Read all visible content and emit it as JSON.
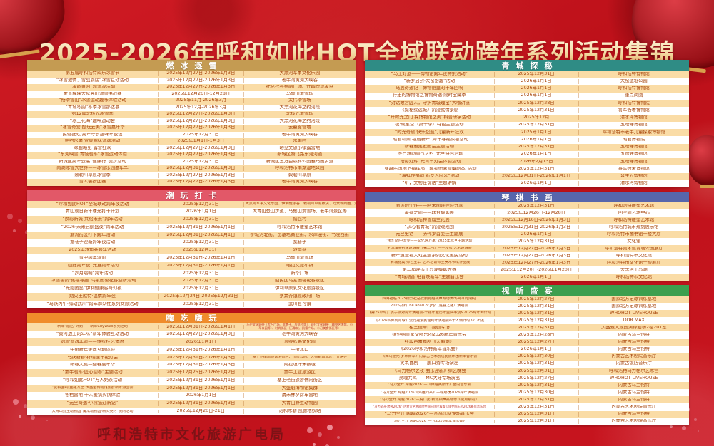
{
  "title": "2025-2026年呼和如此HOT全域联动跨年系列活动集锦",
  "footer": "呼和浩特市文化旅游广电局",
  "accent_colors": {
    "background_red": "#BC1019",
    "row_peach": "#FADCA6",
    "cell_text": "#A54309",
    "title_gold": "#F4DCA6",
    "footer_maroon": "#7D1216"
  },
  "sections": [
    {
      "title": "燃冰逐雪",
      "header_color": "#C49B52",
      "rows": [
        [
          "第五届呼和浩特欢乐冰雪节",
          "2025年12月27日-2026年1月3日",
          "大黑河军事文化乐园"
        ],
        [
          "“冰雪激情、雪战到底”冰雪互动活动",
          "2025年12月27日-2026年1月3日",
          "老牛湾黄河大峡谷"
        ],
        [
          "“凌韵黄河”观流凌活动",
          "2025年12月27日-2026年1月3日",
          "托克托县神韵广场、什四份观凌点"
        ],
        [
          "蒙晋冀陕大众高山滑雪挑战赛",
          "2025年12月26日-12月28日",
          "马鬃山滑雪场"
        ],
        [
          "“畅滑雪山”冰雪运动趣味体验活动",
          "2025年11月-2026年3月",
          "太伟滑雪场"
        ],
        [
          "“青城冬韵”冬季冰雪那达慕",
          "2025年12月-2026年3月",
          "大黑河花海之约河段"
        ],
        [
          "第12届北极光冰雪季",
          "2025年12月27日-2026年1月3日",
          "北极光滑雪场"
        ],
        [
          "“冰上花海”趣味运动会",
          "2025年12月27日-2026年1月3日",
          "大黑河花海之约河段"
        ],
        [
          "“冰雪奇营·酷玩云美”冰雪嘉年华",
          "2025年12月27日-2026年1月3日",
          "云曼露营地"
        ],
        [
          "民俗狂欢·跨年守岁趣味年夜饭",
          "2025年12月31日",
          "老牛湾黄河大峡谷"
        ],
        [
          "相约水磨·赏景趣味滑冰活动",
          "2025年1月1日-1月3日",
          "水磨村"
        ],
        [
          "冰趣峪见·露营狂欢",
          "2025年12月27日-2026年1月3日",
          "峪见文旅小镇露营地"
        ],
        [
          "“东河映雪·青城暖冬”冰雪运动体验",
          "2025年12月27日-2026年1月3日",
          "新城区腾飞路东河河道"
        ],
        [
          "新城区跨年登高“健康行”徒步活动",
          "2025年12月31日",
          "新城区五万亩森林公园雅玛图步道"
        ],
        [
          "南湖冰雪大世界——冰雪乐园嘉年华",
          "2025年12月31日-2026年1月3日",
          "呼和浩特市南湖湿地公园"
        ],
        [
          "敕勒川草原冰雪季",
          "2025年12月27日-2026年1月3日",
          "敕勒川草原"
        ],
        [
          "雪人装扮比赛",
          "2025年12月27日-2026年1月3日",
          "老牛湾黄河大峡谷"
        ]
      ]
    },
    {
      "title": "青城探秘",
      "header_color": "#2F8C85",
      "rows": [
        [
          "“马上好运——博物馆跨年夜特别活动”",
          "2025年12月31日",
          "呼和浩特博物馆"
        ],
        [
          "“新岁启封·大窑拾趣”活动",
          "2026年1月1日",
          "大窑遗址公园"
        ],
        [
          "马展奇遇记—博物馆里的千年回响",
          "2026年1月1日",
          "呼和浩特博物馆"
        ],
        [
          "行走的博物馆之博物奇遇·限时宝藏季",
          "2026年1月1日",
          "重点商圈"
        ],
        [
          "“对话故宫匠人，守护青城瑰宝”大咖讲座",
          "2025年12月28日",
          "呼和浩特博物院"
        ],
        [
          "《探秘绥远城》沉浸式情景剧",
          "2025年12月31日",
          "将军衙署博物馆"
        ],
        [
          "“开时光之门 探博物馆之美”科普研学活动",
          "2025年12月",
          "清水河博物馆"
        ],
        [
          "夜·观星空〔第十季〕特色主题活动",
          "2025年12月31日",
          "五塔寺博物馆"
        ],
        [
          "“时光奇旅 快乐起航”儿童新年狂欢",
          "2025年1月1日",
          "呼和浩特市老牛儿童探索博物馆"
        ],
        [
          "“昭君和亲 福启新年”跨年寻福探秘活动",
          "2026年1月1日",
          "昭君博物院"
        ],
        [
          "新春雅集逛园会主题活动",
          "2025年12月31日",
          "五塔寺博物馆"
        ],
        [
          "“冬日雅韵香气之约”元旦特色活动",
          "2026年1月1日",
          "五塔寺博物馆"
        ],
        [
          "“塔影灯辉”元宵节灯会体验活动",
          "2026年2月13日",
          "五塔寺博物馆"
        ],
        [
          "“穿越民国地下指挥部：解锁衙署隐藏剧本”活动",
          "2025年12月31日",
          "将军衙署博物馆"
        ],
        [
          "“海蚌传福韵·新岁入府来”活动",
          "2025年12月31日-2026年1月1日",
          "公主府博物馆"
        ],
        [
          "“听，文物在说话”主题讲解",
          "2026年1月1日",
          "清水河博物馆"
        ]
      ]
    },
    {
      "title": "潮玩打卡",
      "header_color": "#E25868",
      "rows": [
        [
          "“呼和如此HOT”全城联动跨年夜活动",
          "2025年12月31日",
          "大黑河军事文化乐园、伊利健康谷、敕勒川草原板块、万景城商圈、远方国际美食街等"
        ],
        [
          "青山观日新年曙光打卡计划",
          "2026年1月1日",
          "大青山登山步道、马鬃山滑雪场、老牛湾景区等"
        ],
        [
          "“焕彩新城 共绘未来”跨年活动",
          "2025年12月31日",
          "恼包村"
        ],
        [
          "“2026·未来启航盛夜”跨年活动",
          "2025年12月31日-2026年1月1日",
          "呼和浩特市雕塑艺术馆"
        ],
        [
          "潮流街区打卡跨年活动",
          "2025年12月31日-2026年1月1日",
          "护城河北街、比塞塔商业街、水岸漫街、书院西街"
        ],
        [
          "宽巷子迎新跨年夜活动",
          "2025年12月31日",
          "宽巷子"
        ],
        [
          "2025年转角巷跨年活动",
          "2025年12月31日",
          "转角巷"
        ],
        [
          "雪中跨年派对",
          "2025年12月31日-2026年1月1日",
          "马鬃山滑雪场"
        ],
        [
          "“山野跨年夜”元旦跨年活动",
          "2025年12月31日-2026年1月1日",
          "峪见文旅小镇"
        ],
        [
          "“岁月唱响”跨年活动",
          "2025年12月31日",
          "新华广场"
        ],
        [
          "“冰雪杏韵·集福寻趣”乌素图杏花谷迎新活动",
          "2025年12月31日",
          "回民区乌素图杏花谷景区"
        ],
        [
          "“光影图鉴”伊利健康谷奇幻夜",
          "2025年12月31日",
          "伊利草原乳文化旅游景区"
        ],
        [
          "烟火土默特·温情跨年夜",
          "2025年12月24日-2025年12月31日",
          "察素齐镇原政府广场"
        ],
        [
          "“马跃丙午·嗨动武川”跨年群众性系列文旅活动",
          "2025年12月31日",
          "武川县可镇"
        ]
      ]
    },
    {
      "title": "琴棋书画",
      "header_color": "#5766AC",
      "rows": [
        [
          "阅读的个性——阿来阅读经验分享",
          "2025年12月31日",
          "呼和浩特雕塑艺术馆"
        ],
        [
          "凝视之间——联合摄影展",
          "2025年12月26日-12月28日",
          "回空间艺术中心"
        ],
        [
          "呼和浩特首届兰花展",
          "2025年12月16日-2026年1月3日",
          "呼和浩特雕塑艺术馆"
        ],
        [
          "“从心看青城”沉浸观规划",
          "2025年12月31日-2026年1月3日",
          "呼和浩特城市规划展示馆"
        ],
        [
          "元旦史话——历代岁首变迁主题展",
          "2026年1月1日",
          "呼和浩特市图书馆一楼大厅"
        ],
        [
          "“我们的中国梦——文化进万家”2025年元旦主题活动",
          "2025年12月31日",
          "文化馆"
        ],
        [
          "“全国油画名家邀请展〔第二回〕——和弦·艺术邀请展”",
          "2025年12月27日-2026年1月3日",
          "呼和浩特美术馆青城公园展厅"
        ],
        [
          "新年邀您看大戏主题系列文化惠民活动",
          "2025年12月27日-2026年1月3日",
          "呼和浩特市文化馆"
        ],
        [
          "“青城雅集 师艺生华”艺术培训师生美术书法作品展",
          "2025年12月27日-2026年1月3日",
          "呼和浩特市文化馆一楼展厅"
        ],
        [
          "第二届呼市千岛湖摄影大赛",
          "2025年12月20日-2026年1月20日",
          "大黑河千岛湖"
        ],
        [
          "“青城潮音 电音焕新年”主题音乐会",
          "2026年1月1日",
          "呼和浩特市文化馆"
        ]
      ]
    },
    {
      "title": "嗨吃嗨玩",
      "header_color": "#F08C2B",
      "rows": [
        [
          "新年“溜达”计划——新年CityWalk系列活动",
          "2025年12月31日-2026年1月1日",
          "历史文化轴带（大召广场、宽巷子、庆凯桥等）、现代文化轴带（雕塑艺术馆、小草公园等）、时尚街区（万象城、凯德广场、小召美食街区等）"
        ],
        [
          "“黄河边上的年味”新年体验互动活动",
          "2025年12月27日-2026年1月3日",
          "老牛湾黄河大峡谷"
        ],
        [
          "冰雪奇遇非遗——传统技艺体验",
          "2026年1月1日",
          "京绥铁路文化园"
        ],
        [
          "牛街新年美陈互动体验",
          "2025年12月31日-2026年1月1日",
          "牛街北口"
        ],
        [
          "马跃新春·祥瑞佳年花灯会",
          "2025年12月31日-2026年1月3日",
          "塞上老街旅游休闲街区、玉泉公园、大盛魁南北区、五塔寺"
        ],
        [
          "新春大集—迎春嘉年华",
          "2025年12月31日-2026年1月3日",
          "阿拉坦汗禾泰城"
        ],
        [
          "“蒙牛暖冬·匠心迎春”主题活动",
          "2025年12月25日-2026年1月2日",
          "蒙牛工业旅游区"
        ],
        [
          "“呼和如此HOT”万人奶茶活动",
          "2025年12月31日-2026年1月1日",
          "塞上老街旅游休闲街区"
        ],
        [
          "“驼铃回响·丝路万里”大盛魁博物馆集群新年游园会",
          "2025年12月31日-2026年1月1日",
          "大盛魁博物馆集群"
        ],
        [
          "冬栖营地 千人暖锅火锅体验",
          "2026年1月1日",
          "清禾林夕房车营地"
        ],
        [
          "“元旦奇遇·小熊猫迎新记”",
          "2025年12月31日-2026年1月3日",
          "大青山野生动物园"
        ],
        [
          "大青山野生动物园“魔法动物园·精灵契约”快闪活动",
          "2025年12月20日-21日",
          "诺和木勒·凯德地铁站"
        ]
      ]
    },
    {
      "title": "视听盛宴",
      "header_color": "#3C9F4E",
      "rows": [
        [
          "四海福临2025德云社岳云鹏孙越相声专场演出-呼和浩特站",
          "2025年12月27日",
          "国家北方足球训练基地"
        ],
        [
          "2025郑钧The Road of Joy〔狂喜之路〕演唱会",
          "2025年12月31日",
          "国家北方足球训练基地"
        ],
        [
          "【第25小时】质子派对跨年演唱会-千禧年起历年金曲串烧&2025跨年倒计时",
          "2025年12月31日",
          "WHOHOT LIVEHOUSE"
        ],
        [
          "【2026私奔到月球】流行摇滚民谣跨年演唱会&千人倒计时321出发",
          "2025年12月31日",
          "DDR MAX"
        ],
        [
          "相三便单口喜剧专场",
          "2025年12月31日",
          "大盛魁大观园演绎剧场2楼201室"
        ],
        [
          "维也纳皇家交响乐团2026新年音乐会",
          "2025年12月28日",
          "内蒙古乌兰恰特"
        ],
        [
          "经典芭蕾舞剧《天鹅湖》",
          "2025年12月27日",
          "内蒙古乌兰恰特"
        ],
        [
          "《2026呼和浩特新年音乐会》",
          "2026年1月1日",
          "内蒙古乌兰恰特"
        ],
        [
          "《舞马逐光·岁乐新章》内蒙古艺术剧院民族乐团新年音乐会",
          "2025年12月30日",
          "内蒙古艺术剧院音乐厅"
        ],
        [
          "笑氧喜剧——脱口秀专场演出",
          "2025年12月31日",
          "内蒙古饭店音乐厅"
        ],
        [
          "《乌力格尔之夜·曲乐迎新》综艺晚会",
          "2025年12月31日",
          "呼和浩特乌力格尔艺术宫"
        ],
        [
          "灵魂共鸣——MC大牙专场演出",
          "2025年12月27日",
          "WHOHOT LIVEHOUSE"
        ],
        [
          "“马力全开 跨越2026”—《穿越奥斯卡》室内音乐会",
          "2025年12月31日",
          "内蒙古乌兰恰特"
        ],
        [
          "“马力全开 跨越2026”《鸿雁归来》—呼斯楞2026跨年演唱会",
          "2025年12月30日",
          "内蒙古乌兰恰特"
        ],
        [
          "“马力全开 跨越2026”—脱口秀 新派相声高晓攀《说点别的》",
          "2025年12月31日",
          "内蒙古乌兰恰特"
        ],
        [
          "“马力全开·跨越2026”-内蒙古艺术剧院交响乐团民族青少年交响乐团2026新年音乐会",
          "2025年12月31日",
          "内蒙古艺术剧院音乐厅"
        ],
        [
          "“马力全开 跨越2026”—奈热乐队专场音乐会",
          "2025年12月31日",
          "内蒙古乌兰恰特"
        ],
        [
          "“马力全开 跨越2026”—《2026新年音乐会》",
          "2025年12月31日",
          "内蒙古艺术剧院音乐厅"
        ]
      ]
    }
  ]
}
